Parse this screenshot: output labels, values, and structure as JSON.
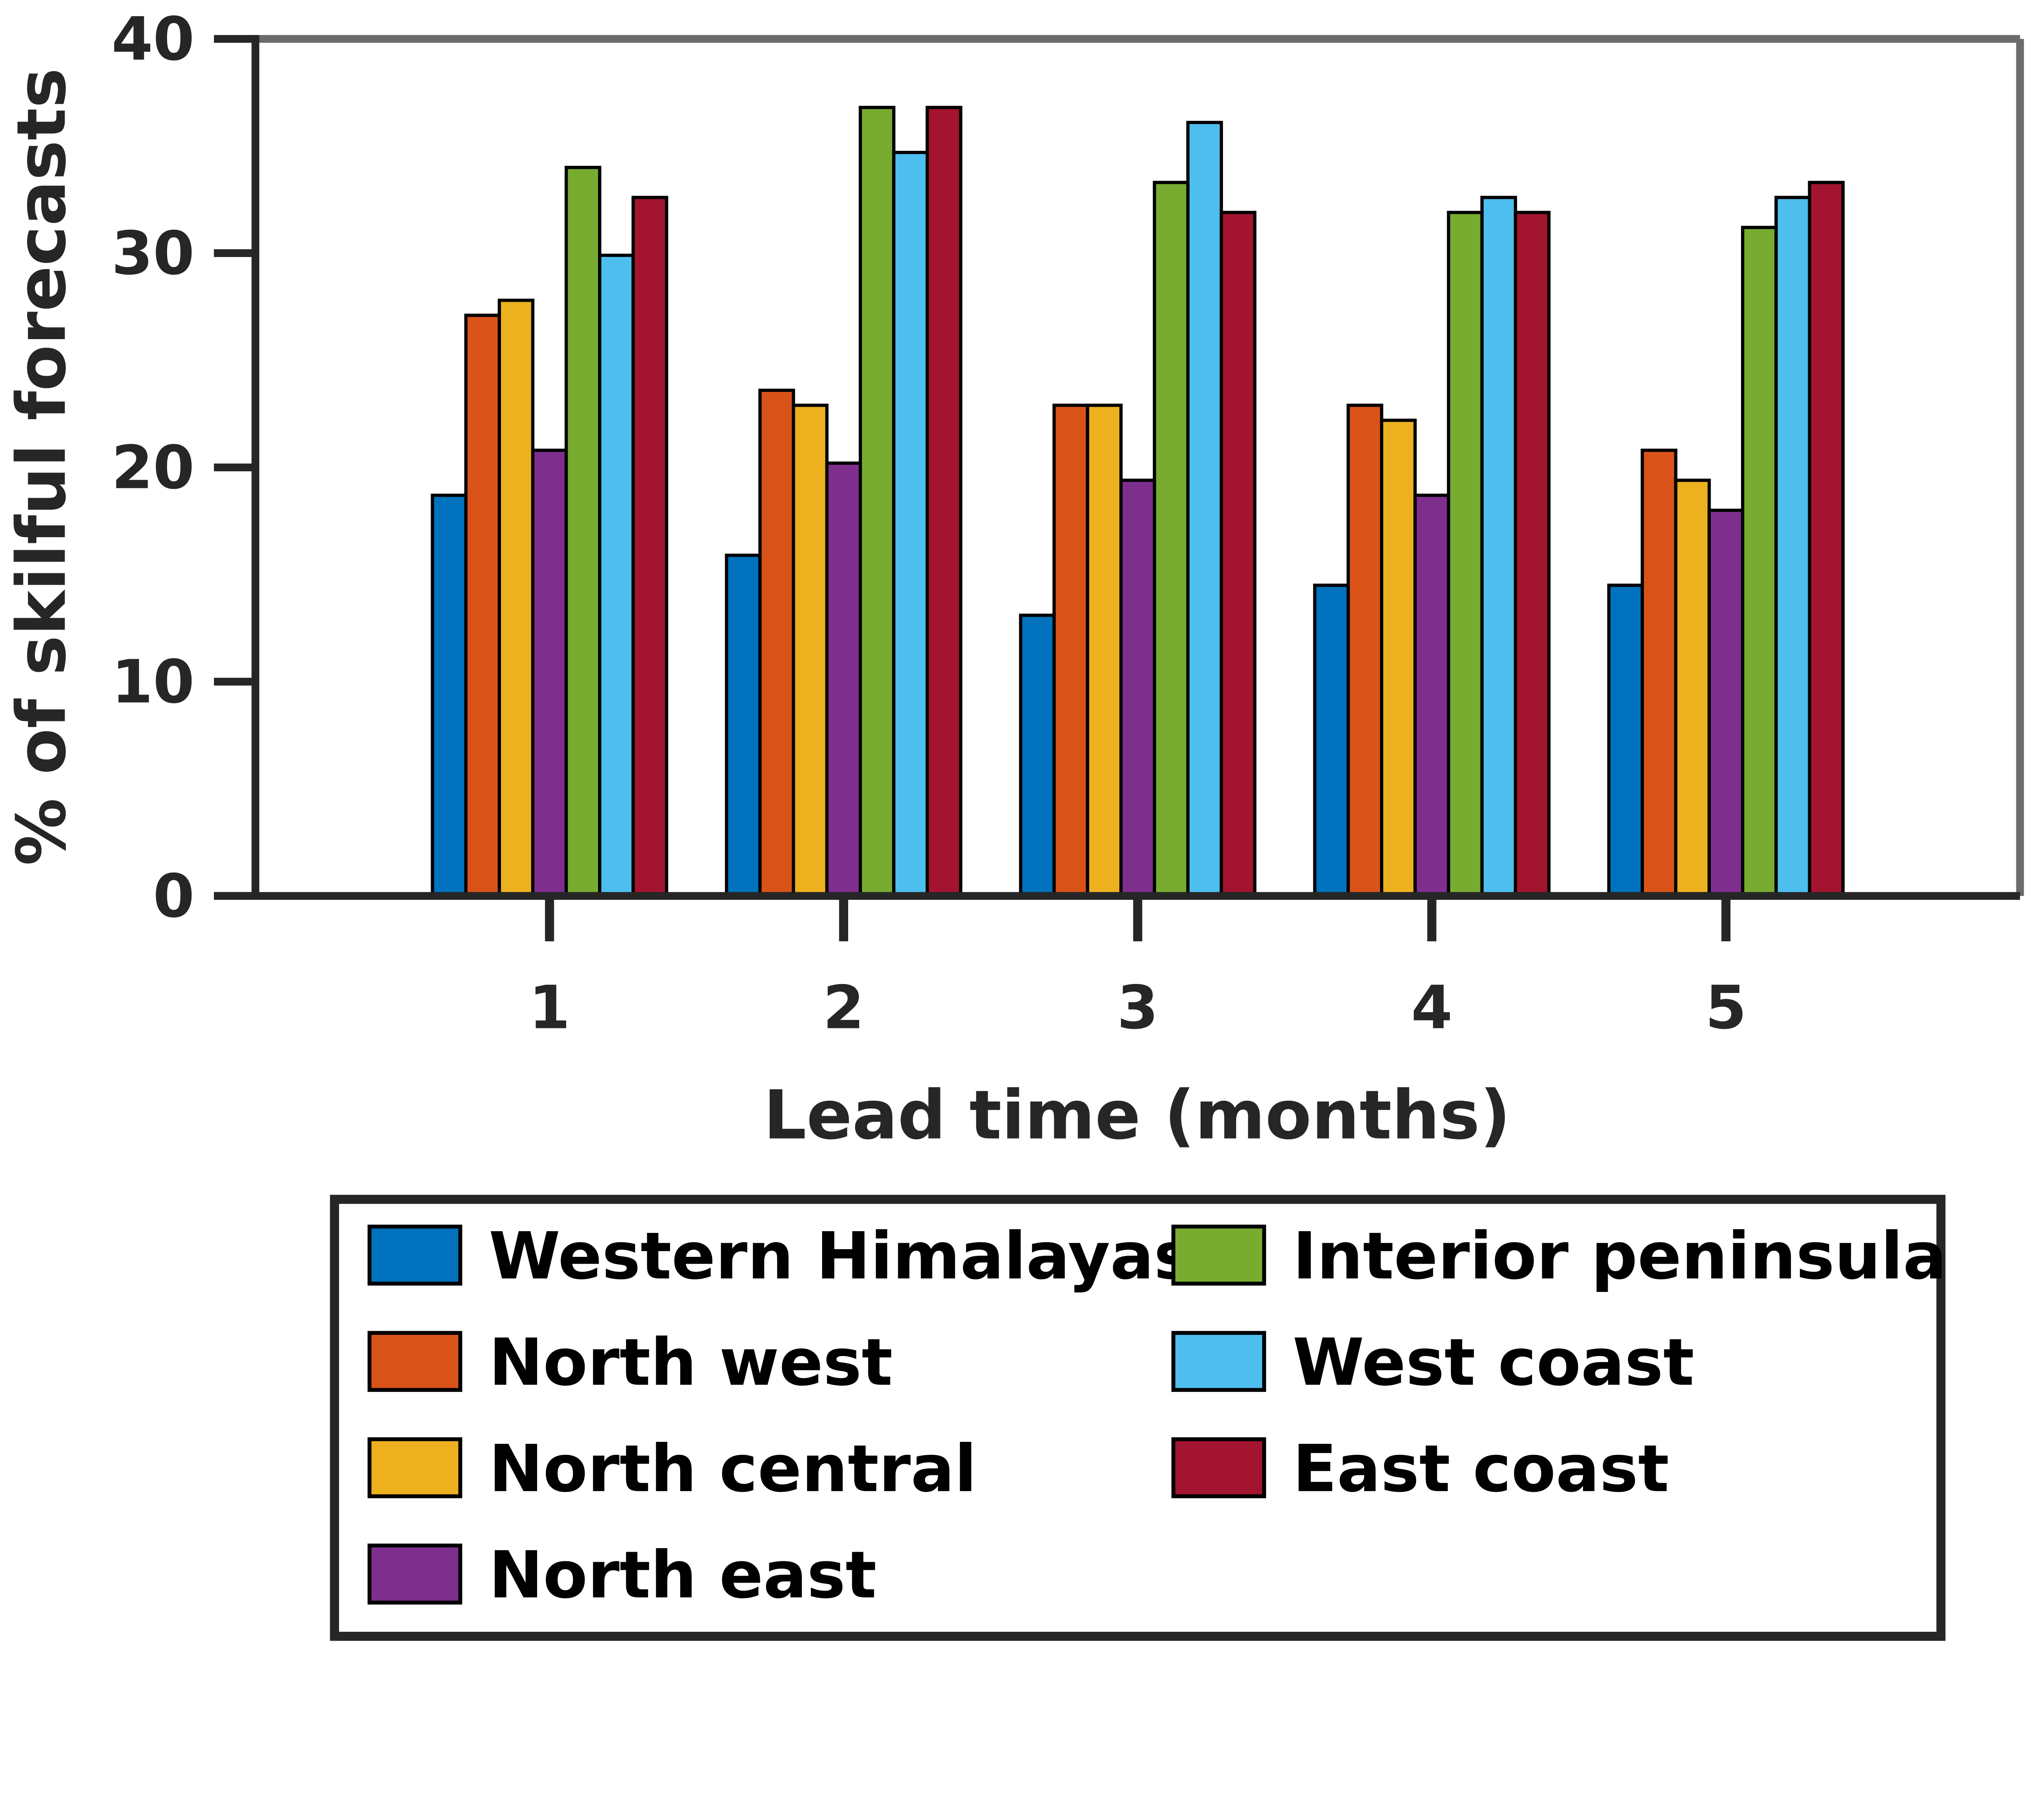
{
  "chart_data": {
    "type": "bar",
    "title": "",
    "xlabel": "Lead time (months)",
    "ylabel": "% of skilful forecasts",
    "categories": [
      "1",
      "2",
      "3",
      "4",
      "5"
    ],
    "xlim": [
      0,
      6
    ],
    "ylim": [
      0,
      40
    ],
    "yticks": [
      "0",
      "10",
      "20",
      "30",
      "40"
    ],
    "grid": false,
    "legend_placement": "bottom",
    "series": [
      {
        "name": "Western Himalayas",
        "color": "#0072BD",
        "values": [
          18.7,
          15.9,
          13.1,
          14.5,
          14.5
        ]
      },
      {
        "name": "North west",
        "color": "#D95319",
        "values": [
          27.1,
          23.6,
          22.9,
          22.9,
          20.8
        ]
      },
      {
        "name": "North central",
        "color": "#EDB120",
        "values": [
          27.8,
          22.9,
          22.9,
          22.2,
          19.4
        ]
      },
      {
        "name": "North east",
        "color": "#7E2F8E",
        "values": [
          20.8,
          20.2,
          19.4,
          18.7,
          18.0
        ]
      },
      {
        "name": "Interior peninsula",
        "color": "#77AC30",
        "values": [
          34.0,
          36.8,
          33.3,
          31.9,
          31.2
        ]
      },
      {
        "name": "West coast",
        "color": "#4DBEEE",
        "values": [
          29.9,
          34.7,
          36.1,
          32.6,
          32.6
        ]
      },
      {
        "name": "East coast",
        "color": "#A2142F",
        "values": [
          32.6,
          36.8,
          31.9,
          31.9,
          33.3
        ]
      }
    ]
  }
}
